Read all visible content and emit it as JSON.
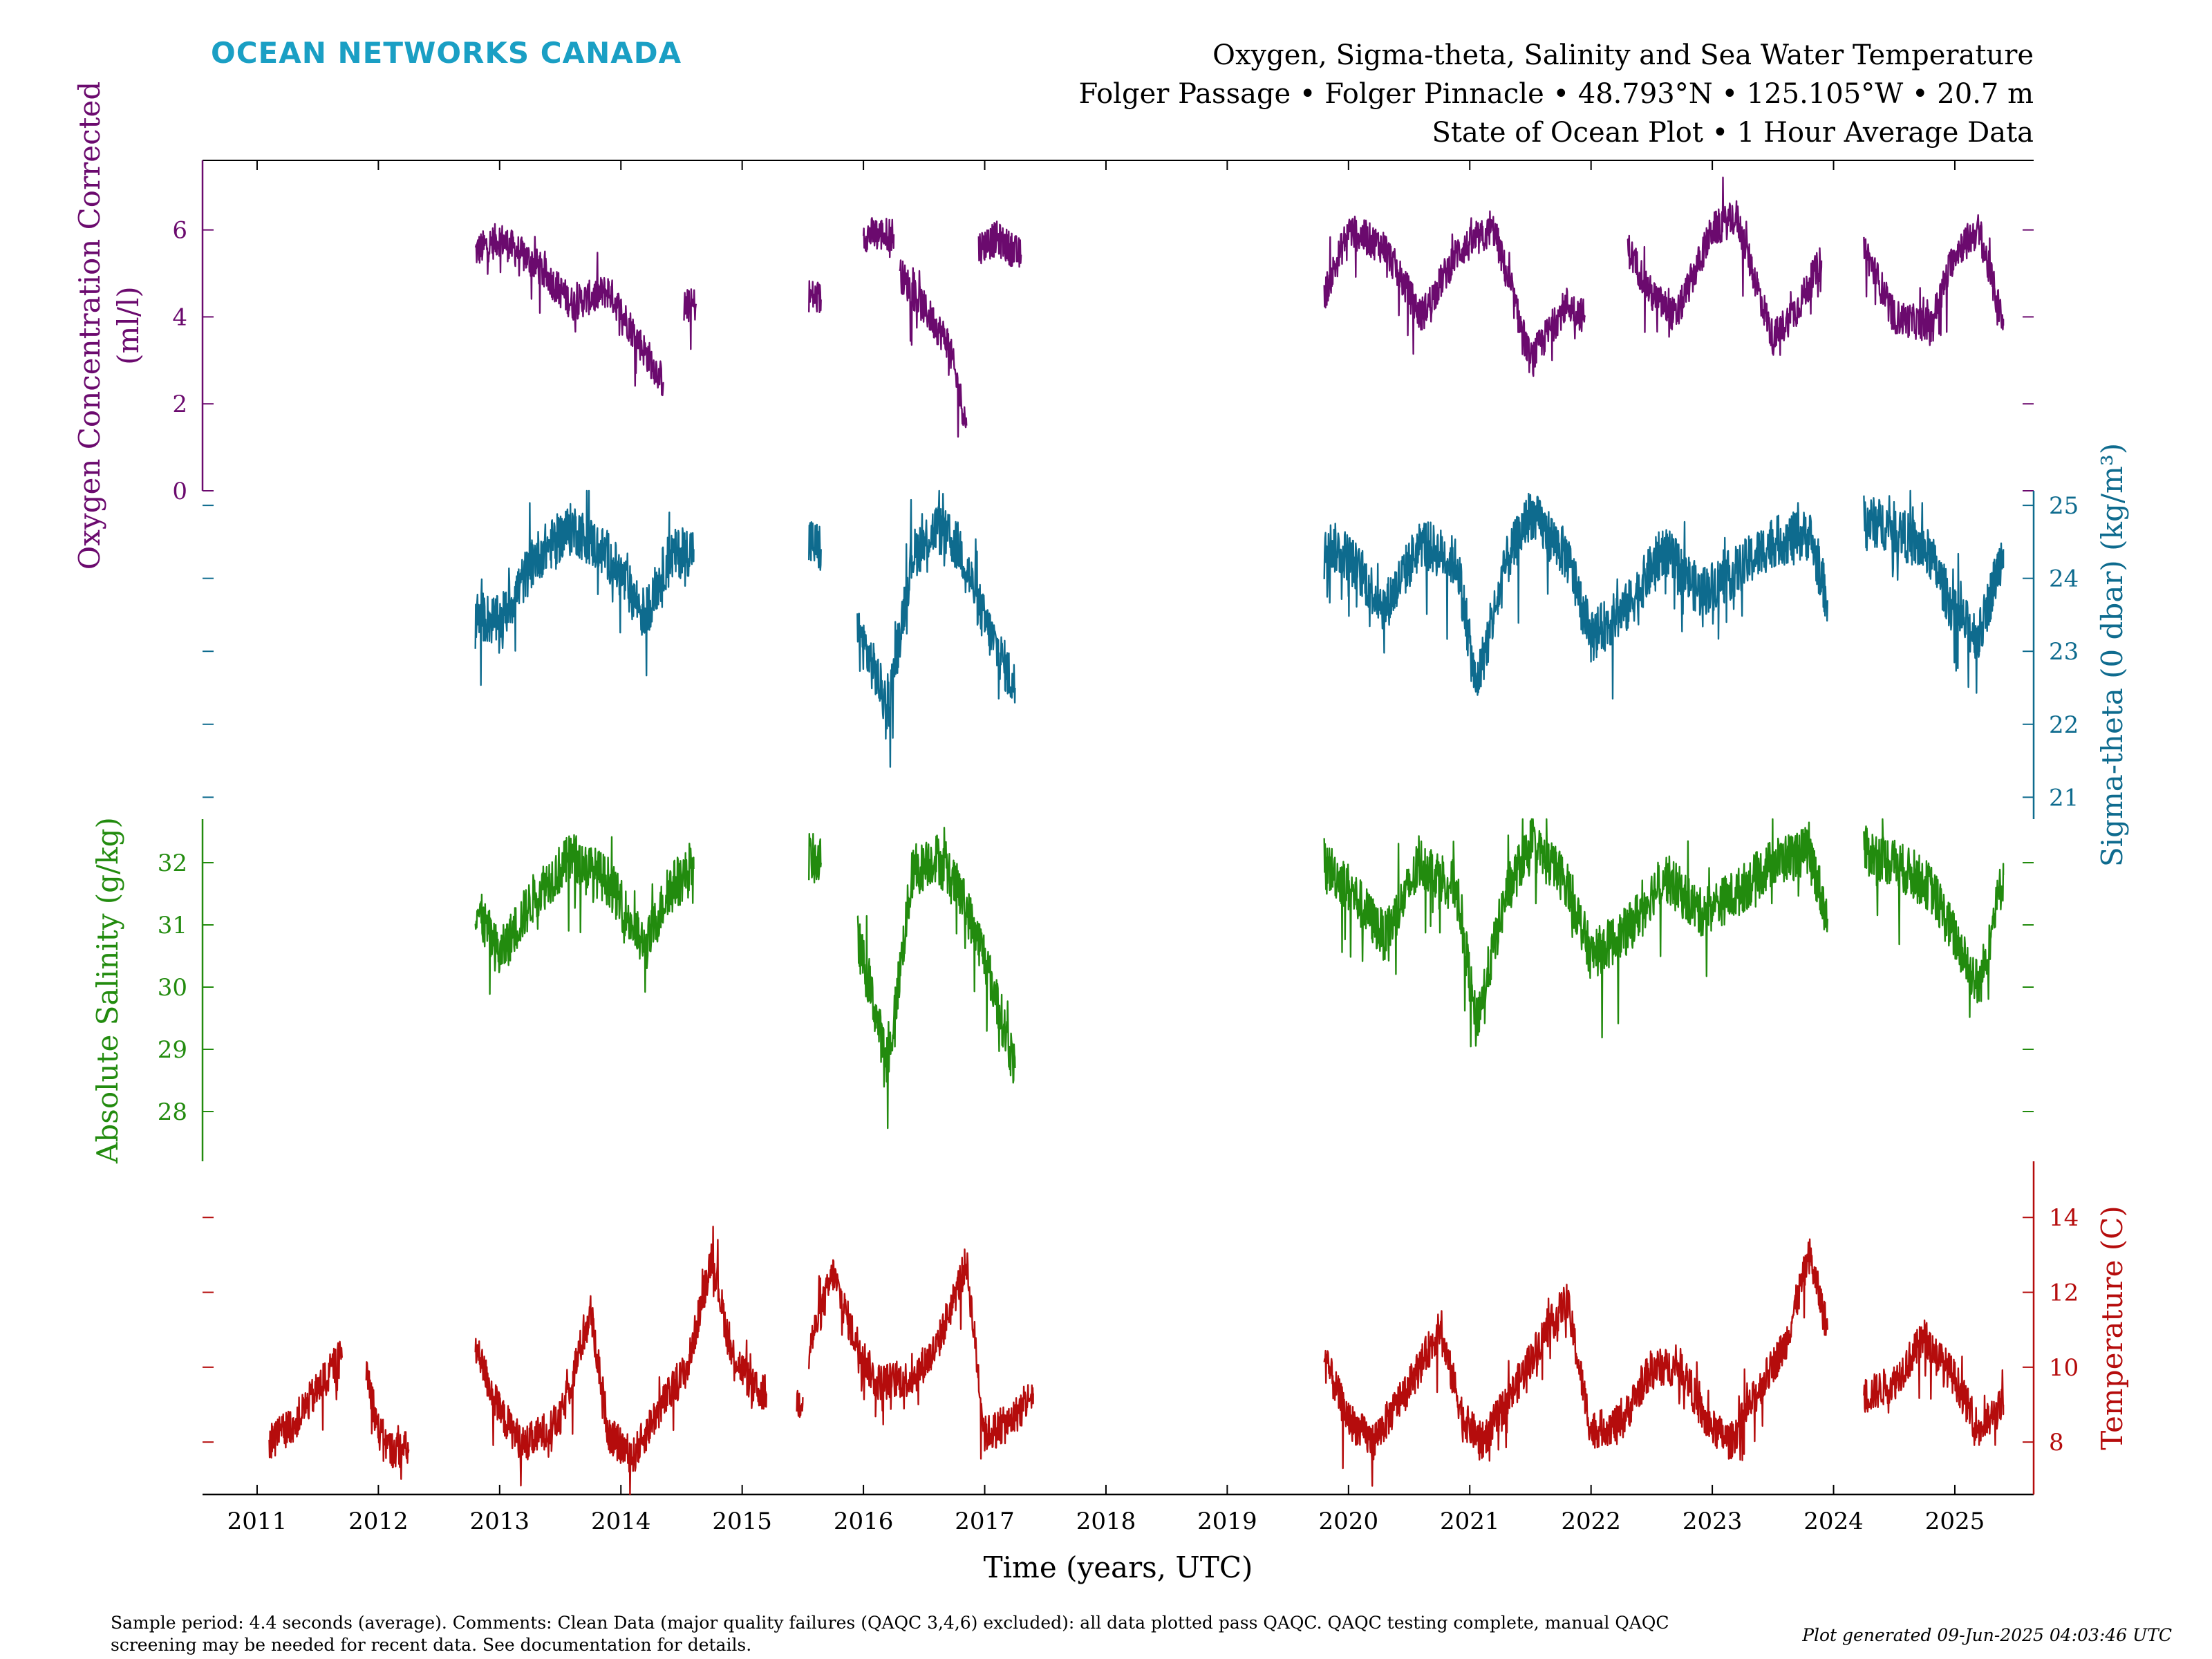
{
  "brand": {
    "name": "OCEAN NETWORKS CANADA",
    "color": "#1a9fc4"
  },
  "title": {
    "line1": "Oxygen, Sigma-theta, Salinity and Sea Water Temperature",
    "line2": "Folger Passage • Folger Pinnacle • 48.793°N • 125.105°W • 20.7 m",
    "line3": "State of Ocean Plot • 1 Hour Average Data"
  },
  "footer": {
    "note": "Sample period: 4.4 seconds (average). Comments: Clean Data (major quality failures (QAQC 3,4,6) excluded): all data plotted pass QAQC. QAQC testing complete, manual QAQC screening may be needed for recent data. See documentation for details.",
    "generated": "Plot generated 09-Jun-2025 04:03:46 UTC"
  },
  "chart_data": {
    "type": "line",
    "xlabel": "Time (years, UTC)",
    "xlim": [
      2010.55,
      2025.65
    ],
    "x_ticks": [
      2011,
      2012,
      2013,
      2014,
      2015,
      2016,
      2017,
      2018,
      2019,
      2020,
      2021,
      2022,
      2023,
      2024,
      2025
    ],
    "grid": false,
    "legend": "none",
    "series": [
      {
        "key": "oxygen",
        "ylabel": "Oxygen Concentration Corrected\n(ml/l)",
        "axis_side": "left",
        "color": "#6b0a6e",
        "ylim": [
          0,
          7.6
        ],
        "ticks": [
          0,
          2,
          4,
          6
        ],
        "noise": 0.8,
        "segments": [
          {
            "x": [
              2012.8,
              2013.0,
              2013.3,
              2013.6,
              2013.9,
              2014.2,
              2014.35
            ],
            "y": [
              5.5,
              5.8,
              5.2,
              4.3,
              4.6,
              3.2,
              2.5
            ]
          },
          {
            "x": [
              2014.52,
              2014.62
            ],
            "y": [
              4.2,
              4.3
            ]
          },
          {
            "x": [
              2015.55,
              2015.65
            ],
            "y": [
              4.5,
              4.4
            ]
          },
          {
            "x": [
              2016.0,
              2016.25
            ],
            "y": [
              5.9,
              5.9
            ]
          },
          {
            "x": [
              2016.3,
              2016.5,
              2016.7,
              2016.85
            ],
            "y": [
              5.0,
              4.2,
              3.4,
              1.5
            ]
          },
          {
            "x": [
              2016.95,
              2017.1,
              2017.3
            ],
            "y": [
              5.6,
              5.8,
              5.4
            ]
          },
          {
            "x": [
              2019.8,
              2020.0,
              2020.3,
              2020.6,
              2020.9,
              2021.2,
              2021.5,
              2021.8,
              2021.95
            ],
            "y": [
              4.5,
              6.0,
              5.6,
              4.0,
              5.5,
              6.0,
              3.0,
              4.3,
              4.0
            ]
          },
          {
            "x": [
              2022.3,
              2022.5,
              2022.7,
              2023.0,
              2023.2,
              2023.5,
              2023.7,
              2023.9
            ],
            "y": [
              5.6,
              4.5,
              4.0,
              6.0,
              6.3,
              3.5,
              4.2,
              5.3
            ]
          },
          {
            "x": [
              2024.25,
              2024.5,
              2024.8,
              2025.0,
              2025.2,
              2025.4
            ],
            "y": [
              5.6,
              4.0,
              3.8,
              5.5,
              6.0,
              3.8
            ]
          }
        ]
      },
      {
        "key": "sigma",
        "ylabel": "Sigma-theta (0 dbar) (kg/m³)",
        "axis_side": "right",
        "color": "#0e6b8e",
        "ylim": [
          20.7,
          25.2
        ],
        "ticks": [
          21,
          22,
          23,
          24,
          25
        ],
        "noise": 0.7,
        "segments": [
          {
            "x": [
              2012.8,
              2013.0,
              2013.3,
              2013.6,
              2013.9,
              2014.2,
              2014.4,
              2014.6
            ],
            "y": [
              23.5,
              23.4,
              24.3,
              24.7,
              24.3,
              23.5,
              24.3,
              24.4
            ]
          },
          {
            "x": [
              2015.55,
              2015.65
            ],
            "y": [
              24.5,
              24.4
            ]
          },
          {
            "x": [
              2015.95,
              2016.1,
              2016.2,
              2016.4,
              2016.6,
              2016.8,
              2017.0,
              2017.25
            ],
            "y": [
              23.3,
              22.7,
              22.2,
              24.3,
              24.7,
              24.4,
              23.4,
              22.5
            ]
          },
          {
            "x": [
              2019.8,
              2020.0,
              2020.3,
              2020.6,
              2020.9,
              2021.05,
              2021.3,
              2021.5,
              2021.8,
              2022.0,
              2022.3,
              2022.6,
              2022.9,
              2023.2,
              2023.5,
              2023.8,
              2023.95
            ],
            "y": [
              24.5,
              24.3,
              23.6,
              24.5,
              24.2,
              22.5,
              24.2,
              24.9,
              24.3,
              23.2,
              23.6,
              24.4,
              23.8,
              24.1,
              24.5,
              24.6,
              23.7
            ]
          },
          {
            "x": [
              2024.25,
              2024.5,
              2024.8,
              2025.0,
              2025.2,
              2025.4
            ],
            "y": [
              24.8,
              24.7,
              24.3,
              23.5,
              23.2,
              24.4
            ]
          }
        ]
      },
      {
        "key": "salinity",
        "ylabel": "Absolute Salinity (g/kg)",
        "axis_side": "left",
        "color": "#228b0e",
        "ylim": [
          27.2,
          32.7
        ],
        "ticks": [
          28,
          29,
          30,
          31,
          32
        ],
        "noise": 0.8,
        "segments": [
          {
            "x": [
              2012.8,
              2013.0,
              2013.3,
              2013.6,
              2013.9,
              2014.2,
              2014.4,
              2014.6
            ],
            "y": [
              31.3,
              30.5,
              31.5,
              32.1,
              31.7,
              30.6,
              31.6,
              31.9
            ]
          },
          {
            "x": [
              2015.55,
              2015.65
            ],
            "y": [
              32.1,
              32.0
            ]
          },
          {
            "x": [
              2015.95,
              2016.1,
              2016.2,
              2016.4,
              2016.6,
              2016.8,
              2017.0,
              2017.25
            ],
            "y": [
              30.8,
              29.6,
              28.7,
              31.8,
              32.1,
              31.5,
              30.5,
              28.7
            ]
          },
          {
            "x": [
              2019.8,
              2020.0,
              2020.3,
              2020.6,
              2020.9,
              2021.05,
              2021.3,
              2021.5,
              2021.8,
              2022.0,
              2022.3,
              2022.6,
              2022.9,
              2023.2,
              2023.5,
              2023.8,
              2023.95
            ],
            "y": [
              32.0,
              31.6,
              30.8,
              32.0,
              31.6,
              29.4,
              31.5,
              32.3,
              31.7,
              30.5,
              30.9,
              31.8,
              31.2,
              31.5,
              32.0,
              32.2,
              31.1
            ]
          },
          {
            "x": [
              2024.25,
              2024.5,
              2024.8,
              2025.0,
              2025.2,
              2025.4
            ],
            "y": [
              32.2,
              32.0,
              31.6,
              30.8,
              30.0,
              31.8
            ]
          }
        ]
      },
      {
        "key": "temperature",
        "ylabel": "Temperature (C)",
        "axis_side": "right",
        "color": "#b50c0c",
        "ylim": [
          6.6,
          15.5
        ],
        "ticks": [
          8,
          10,
          12,
          14
        ],
        "noise": 1.0,
        "segments": [
          {
            "x": [
              2011.1,
              2011.3,
              2011.5,
              2011.7
            ],
            "y": [
              8.0,
              8.5,
              9.4,
              10.3
            ]
          },
          {
            "x": [
              2011.9,
              2012.0,
              2012.1,
              2012.25
            ],
            "y": [
              10.0,
              8.3,
              7.8,
              7.8
            ]
          },
          {
            "x": [
              2012.8,
              2013.0,
              2013.2,
              2013.5,
              2013.75,
              2013.9,
              2014.1,
              2014.3,
              2014.55,
              2014.75,
              2014.9,
              2015.1,
              2015.2
            ],
            "y": [
              10.5,
              8.8,
              7.9,
              8.6,
              11.5,
              8.2,
              7.6,
              8.8,
              10.0,
              13.0,
              10.5,
              9.4,
              9.3
            ]
          },
          {
            "x": [
              2015.45,
              2015.5
            ],
            "y": [
              9.0,
              9.2
            ]
          },
          {
            "x": [
              2015.55,
              2015.75,
              2015.9,
              2016.1,
              2016.4,
              2016.6,
              2016.85,
              2017.0,
              2017.2,
              2017.4
            ],
            "y": [
              10.5,
              12.5,
              11.0,
              9.6,
              9.7,
              10.5,
              12.8,
              8.2,
              8.5,
              9.3
            ]
          },
          {
            "x": [
              2019.8,
              2020.0,
              2020.2,
              2020.5,
              2020.75,
              2020.95,
              2021.1,
              2021.35,
              2021.6,
              2021.8,
              2022.0,
              2022.25,
              2022.5,
              2022.75,
              2022.95,
              2023.15,
              2023.4,
              2023.6,
              2023.8,
              2023.95
            ],
            "y": [
              10.2,
              8.6,
              8.0,
              9.5,
              11.0,
              8.6,
              8.0,
              9.3,
              10.8,
              11.8,
              8.3,
              8.5,
              10.0,
              10.0,
              8.5,
              8.0,
              9.5,
              10.6,
              13.0,
              11.0
            ]
          },
          {
            "x": [
              2024.25,
              2024.5,
              2024.75,
              2025.0,
              2025.2,
              2025.4
            ],
            "y": [
              9.2,
              9.6,
              10.8,
              9.7,
              8.3,
              9.0
            ]
          }
        ]
      }
    ]
  }
}
